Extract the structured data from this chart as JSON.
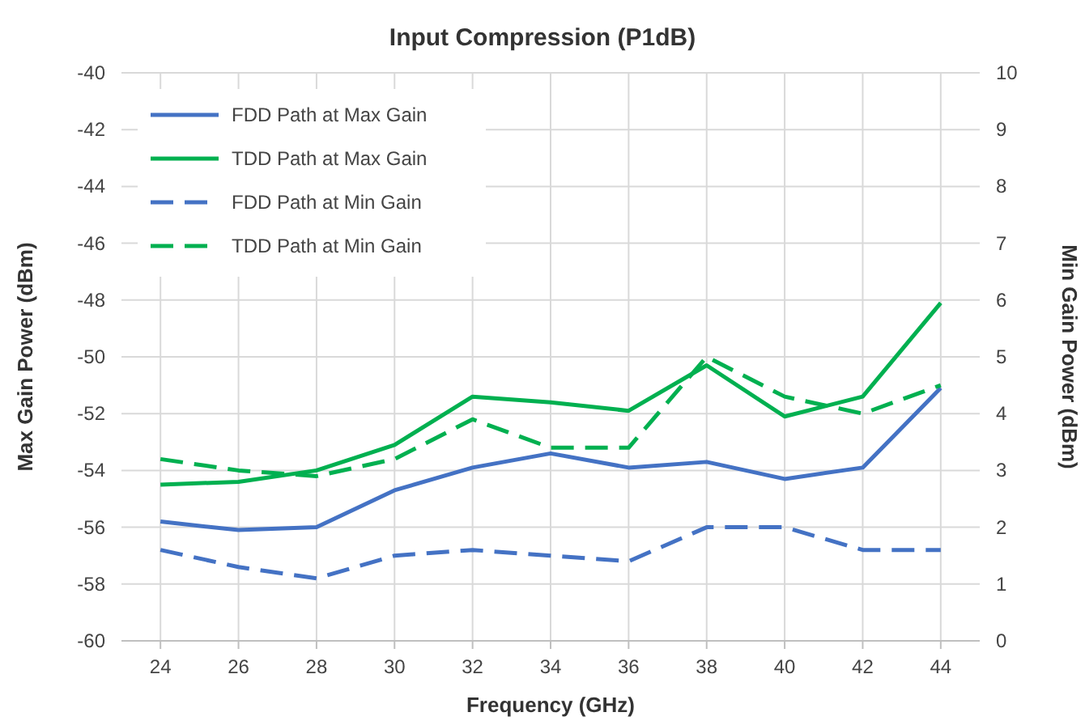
{
  "chart_data": {
    "type": "line",
    "title": "Input Compression (P1dB)",
    "xlabel": "Frequency (GHz)",
    "ylabel": "Max Gain Power (dBm)",
    "y2label": "Min Gain Power (dBm)",
    "x": [
      24,
      26,
      28,
      30,
      32,
      34,
      36,
      38,
      40,
      42,
      44
    ],
    "xlim": [
      23,
      45
    ],
    "xticks": [
      24,
      26,
      28,
      30,
      32,
      34,
      36,
      38,
      40,
      42,
      44
    ],
    "ylim": [
      -60,
      -40
    ],
    "yticks": [
      -60,
      -58,
      -56,
      -54,
      -52,
      -50,
      -48,
      -46,
      -44,
      -42,
      -40
    ],
    "y2lim": [
      0,
      10
    ],
    "y2ticks": [
      0,
      1,
      2,
      3,
      4,
      5,
      6,
      7,
      8,
      9,
      10
    ],
    "grid": true,
    "legend": "top left",
    "marker": "none",
    "series": [
      {
        "name": "FDD Path at Max Gain",
        "color": "#4472c4",
        "line_style": "solid",
        "values": [
          -55.8,
          -56.1,
          -56.0,
          -54.7,
          -53.9,
          -53.4,
          -53.9,
          -53.7,
          -54.3,
          -53.9,
          -51.1
        ]
      },
      {
        "name": "TDD Path at Max Gain",
        "color": "#00b050",
        "line_style": "solid",
        "values": [
          -54.5,
          -54.4,
          -54.0,
          -53.1,
          -51.4,
          -51.6,
          -51.9,
          -50.3,
          -52.1,
          -51.4,
          -48.1
        ]
      },
      {
        "name": "FDD Path at Min Gain",
        "color": "#4472c4",
        "line_style": "dashed",
        "axis": "y2",
        "values": [
          1.6,
          1.3,
          1.1,
          1.5,
          1.6,
          1.5,
          1.4,
          2.0,
          2.0,
          1.6,
          1.6
        ]
      },
      {
        "name": "TDD Path at Min Gain",
        "color": "#00b050",
        "line_style": "dashed",
        "axis": "y2",
        "values": [
          3.2,
          3.0,
          2.9,
          3.2,
          3.9,
          3.4,
          3.4,
          5.0,
          4.3,
          4.0,
          4.5
        ]
      }
    ]
  }
}
